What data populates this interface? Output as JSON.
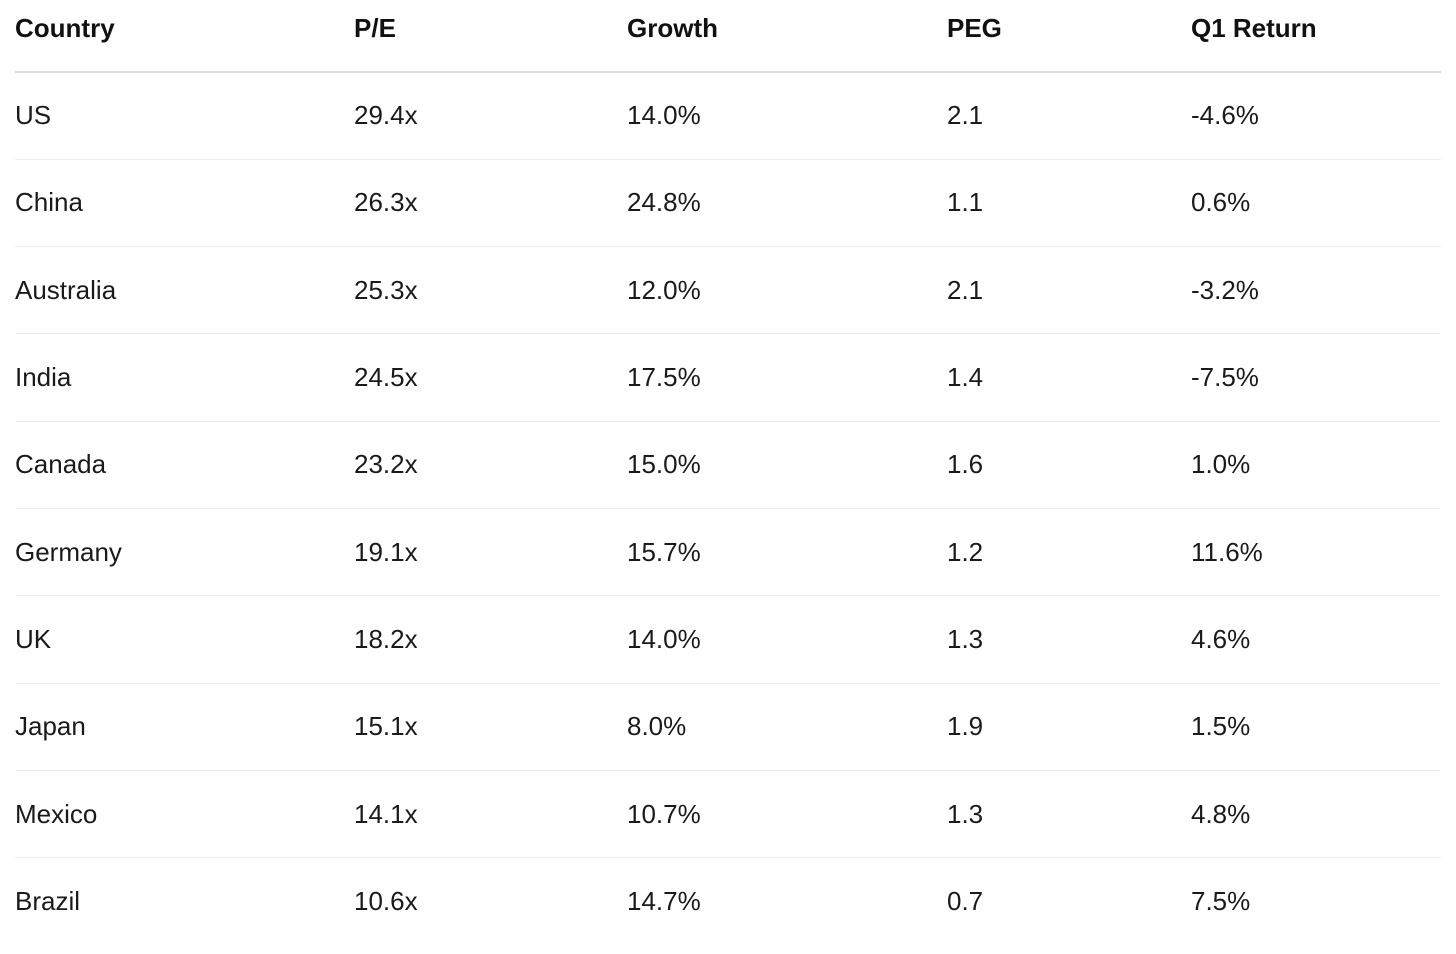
{
  "table": {
    "headers": [
      "Country",
      "P/E",
      "Growth",
      "PEG",
      "Q1 Return"
    ],
    "rows": [
      [
        "US",
        "29.4x",
        "14.0%",
        "2.1",
        "-4.6%"
      ],
      [
        "China",
        "26.3x",
        "24.8%",
        "1.1",
        "0.6%"
      ],
      [
        "Australia",
        "25.3x",
        "12.0%",
        "2.1",
        "-3.2%"
      ],
      [
        "India",
        "24.5x",
        "17.5%",
        "1.4",
        "-7.5%"
      ],
      [
        "Canada",
        "23.2x",
        "15.0%",
        "1.6",
        "1.0%"
      ],
      [
        "Germany",
        "19.1x",
        "15.7%",
        "1.2",
        "11.6%"
      ],
      [
        "UK",
        "18.2x",
        "14.0%",
        "1.3",
        "4.6%"
      ],
      [
        "Japan",
        "15.1x",
        "8.0%",
        "1.9",
        "1.5%"
      ],
      [
        "Mexico",
        "14.1x",
        "10.7%",
        "1.3",
        "4.8%"
      ],
      [
        "Brazil",
        "10.6x",
        "14.7%",
        "0.7",
        "7.5%"
      ]
    ]
  }
}
